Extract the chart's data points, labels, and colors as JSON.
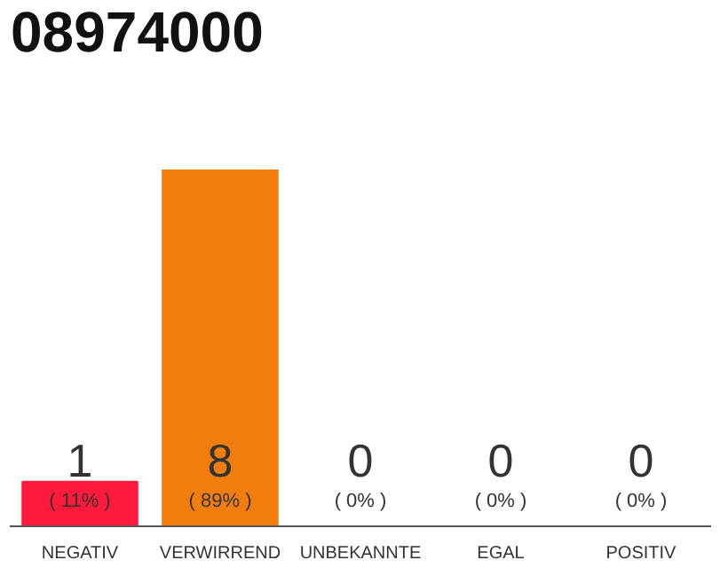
{
  "chart_data": {
    "type": "bar",
    "title": "08974000",
    "categories": [
      "NEGATIV",
      "VERWIRREND",
      "UNBEKANNTE",
      "EGAL",
      "POSITIV"
    ],
    "values": [
      1,
      8,
      0,
      0,
      0
    ],
    "colors": [
      "#ff1a3c",
      "#f07d0c",
      "#cccccc",
      "#cccccc",
      "#cccccc"
    ],
    "ylim": [
      0,
      8
    ],
    "data_labels": true,
    "grid": false,
    "annotations": [
      "( 11% )",
      "( 89% )",
      "( 0% )",
      "( 0% )",
      "( 0% )"
    ]
  }
}
